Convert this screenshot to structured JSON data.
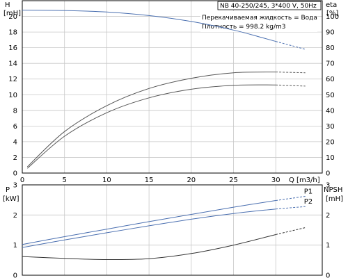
{
  "chart_data": [
    {
      "type": "line",
      "panel": "top",
      "title": "NB 40-250/245, 3*400 V, 50Hz",
      "annotations": [
        "Перекачиваемая жидкость = Вода",
        "Плотность = 998.2 kg/m3"
      ],
      "xlabel": "Q [m3/h]",
      "ylabel_left": [
        "H",
        "[mH]"
      ],
      "ylabel_right": [
        "eta",
        "[%]"
      ],
      "xlim": [
        0,
        35.5
      ],
      "ylim_left": [
        0,
        22
      ],
      "ylim_right": [
        0,
        110
      ],
      "x_ticks": [
        0,
        5,
        10,
        15,
        20,
        25,
        30
      ],
      "y_ticks_left": [
        0,
        2,
        4,
        6,
        8,
        10,
        12,
        14,
        16,
        18,
        20
      ],
      "y_ticks_right": [
        0,
        10,
        20,
        30,
        40,
        50,
        60,
        70,
        80,
        90,
        100
      ],
      "grid": true,
      "series": [
        {
          "axis": "left",
          "color": "#4a6fb0",
          "x": [
            0,
            5,
            10,
            15,
            20,
            25,
            28,
            30,
            33.5
          ],
          "y": [
            20.8,
            20.75,
            20.55,
            20.1,
            19.35,
            18.25,
            17.4,
            16.8,
            15.8
          ],
          "dashed_from": 30
        },
        {
          "axis": "left",
          "color": "#555555",
          "x": [
            0.6,
            5,
            10,
            15,
            20,
            25,
            30,
            33.5
          ],
          "y": [
            0.8,
            5.3,
            8.6,
            10.8,
            12.1,
            12.8,
            12.9,
            12.8
          ],
          "dashed_from": 30
        },
        {
          "axis": "left",
          "color": "#555555",
          "x": [
            0.6,
            5,
            10,
            15,
            20,
            25,
            30,
            33.5
          ],
          "y": [
            0.6,
            4.7,
            7.7,
            9.6,
            10.7,
            11.2,
            11.25,
            11.1
          ],
          "dashed_from": 30
        }
      ]
    },
    {
      "type": "line",
      "panel": "bottom",
      "ylabel_left": [
        "P",
        "[kW]"
      ],
      "ylabel_right": [
        "NPSH",
        "[mH]"
      ],
      "xlim": [
        0,
        35.5
      ],
      "ylim_left": [
        0,
        3
      ],
      "ylim_right": [
        0,
        3
      ],
      "y_ticks_left": [
        0,
        1,
        2,
        3
      ],
      "y_ticks_right": [
        0,
        1,
        2,
        3
      ],
      "grid": true,
      "series": [
        {
          "name": "P1",
          "axis": "left",
          "color": "#4a6fb0",
          "x": [
            0,
            5,
            10,
            15,
            20,
            25,
            30,
            33.5
          ],
          "y": [
            1.02,
            1.28,
            1.53,
            1.78,
            2.02,
            2.26,
            2.48,
            2.62
          ],
          "dashed_from": 30
        },
        {
          "name": "P2",
          "axis": "left",
          "color": "#4a6fb0",
          "x": [
            0,
            5,
            10,
            15,
            20,
            25,
            30,
            33.5
          ],
          "y": [
            0.92,
            1.17,
            1.41,
            1.64,
            1.86,
            2.05,
            2.2,
            2.28
          ],
          "dashed_from": 30
        },
        {
          "axis": "right",
          "color": "#333333",
          "x": [
            0,
            5,
            10,
            15,
            20,
            25,
            30,
            33.5
          ],
          "y": [
            0.62,
            0.56,
            0.52,
            0.55,
            0.72,
            1.0,
            1.35,
            1.58
          ],
          "dashed_from": 30
        }
      ]
    }
  ]
}
